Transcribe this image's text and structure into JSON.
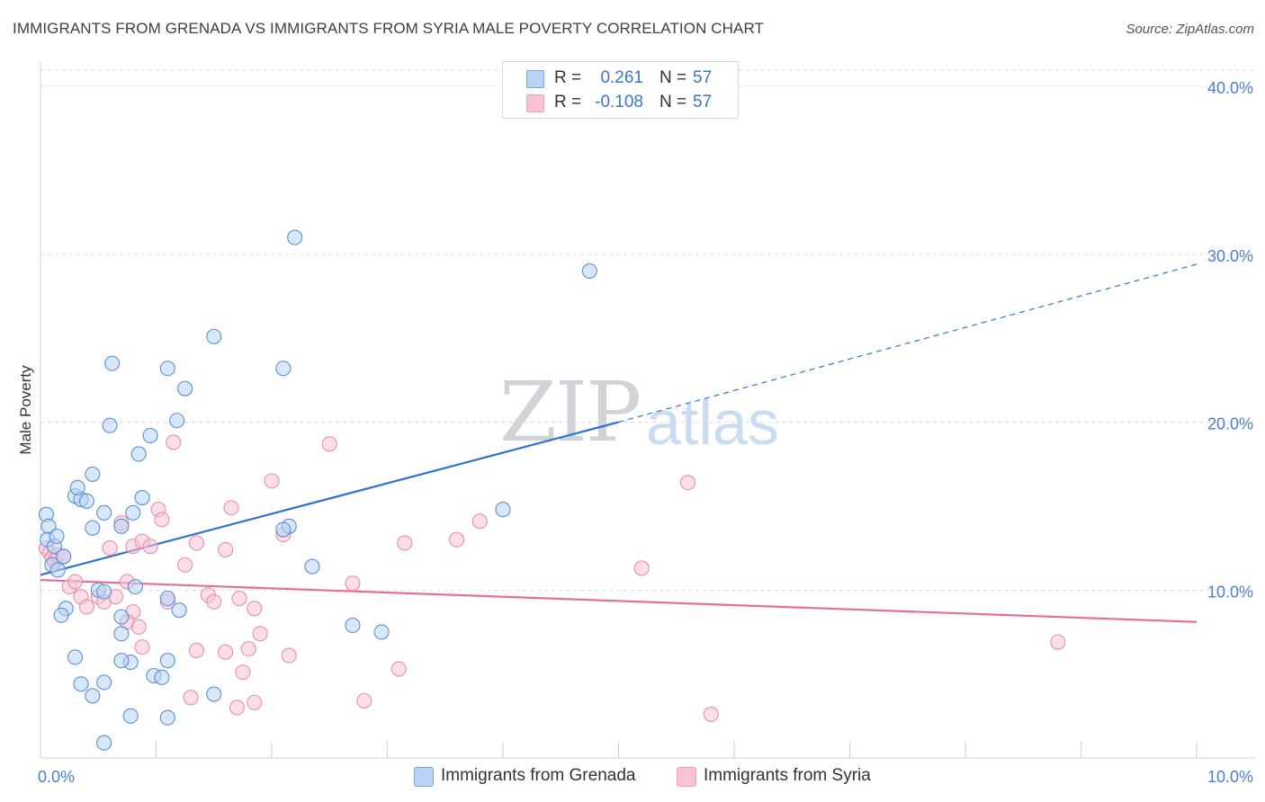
{
  "title": "IMMIGRANTS FROM GRENADA VS IMMIGRANTS FROM SYRIA MALE POVERTY CORRELATION CHART",
  "source": "Source: ZipAtlas.com",
  "watermark": {
    "zip": "ZIP",
    "atlas": "atlas"
  },
  "colors": {
    "grenada_fill": "#b9d3f5",
    "grenada_stroke": "#5b8fd6",
    "grenada_line": "#2f73d0",
    "syria_fill": "#f8c3d4",
    "syria_stroke": "#e58fae",
    "syria_line": "#e86d9a",
    "axis_text": "#4a7fd4"
  },
  "legend": {
    "rows": [
      {
        "r_label": "R =",
        "r_value": "0.261",
        "n_label": "N =",
        "n_value": "57"
      },
      {
        "r_label": "R =",
        "r_value": "-0.108",
        "n_label": "N =",
        "n_value": "57"
      }
    ]
  },
  "bottom_legend": [
    {
      "label": "Immigrants from Grenada"
    },
    {
      "label": "Immigrants from Syria"
    }
  ],
  "chart_data": {
    "type": "scatter",
    "title": "IMMIGRANTS FROM GRENADA VS IMMIGRANTS FROM SYRIA MALE POVERTY CORRELATION CHART",
    "xlabel": "",
    "ylabel": "Male Poverty",
    "xlim": [
      0,
      10
    ],
    "ylim": [
      0,
      40
    ],
    "x_tick_labels": [
      "0.0%",
      "10.0%"
    ],
    "y_ticks": [
      10,
      20,
      30,
      40
    ],
    "y_tick_labels": [
      "10.0%",
      "20.0%",
      "30.0%",
      "40.0%"
    ],
    "grid": true,
    "series": [
      {
        "name": "Immigrants from Grenada",
        "points": [
          [
            0.05,
            14.5
          ],
          [
            0.07,
            13.8
          ],
          [
            0.06,
            13.0
          ],
          [
            0.12,
            12.6
          ],
          [
            0.14,
            13.2
          ],
          [
            0.1,
            11.5
          ],
          [
            0.15,
            11.2
          ],
          [
            0.3,
            15.6
          ],
          [
            0.35,
            15.4
          ],
          [
            0.45,
            16.9
          ],
          [
            0.32,
            16.1
          ],
          [
            0.4,
            15.3
          ],
          [
            0.55,
            14.6
          ],
          [
            0.45,
            13.7
          ],
          [
            0.22,
            8.9
          ],
          [
            0.18,
            8.5
          ],
          [
            0.5,
            10.0
          ],
          [
            0.55,
            9.9
          ],
          [
            0.7,
            13.8
          ],
          [
            0.8,
            14.6
          ],
          [
            0.6,
            19.8
          ],
          [
            0.62,
            23.5
          ],
          [
            0.85,
            18.1
          ],
          [
            0.95,
            19.2
          ],
          [
            0.88,
            15.5
          ],
          [
            1.1,
            9.5
          ],
          [
            1.2,
            8.8
          ],
          [
            1.25,
            22.0
          ],
          [
            1.1,
            23.2
          ],
          [
            1.5,
            25.1
          ],
          [
            0.82,
            10.2
          ],
          [
            0.7,
            7.4
          ],
          [
            0.7,
            8.4
          ],
          [
            0.78,
            5.7
          ],
          [
            0.7,
            5.8
          ],
          [
            0.98,
            4.9
          ],
          [
            1.05,
            4.8
          ],
          [
            1.1,
            5.8
          ],
          [
            0.3,
            6.0
          ],
          [
            0.35,
            4.4
          ],
          [
            0.45,
            3.7
          ],
          [
            0.55,
            4.5
          ],
          [
            0.78,
            2.5
          ],
          [
            1.1,
            2.4
          ],
          [
            0.55,
            0.9
          ],
          [
            1.5,
            3.8
          ],
          [
            2.1,
            23.2
          ],
          [
            2.2,
            31.0
          ],
          [
            2.15,
            13.8
          ],
          [
            2.35,
            11.4
          ],
          [
            2.7,
            7.9
          ],
          [
            2.95,
            7.5
          ],
          [
            4.0,
            14.8
          ],
          [
            4.75,
            29.0
          ],
          [
            2.1,
            13.6
          ],
          [
            1.18,
            20.1
          ],
          [
            0.2,
            12.0
          ]
        ]
      },
      {
        "name": "Immigrants from Syria",
        "points": [
          [
            0.05,
            12.5
          ],
          [
            0.08,
            12.2
          ],
          [
            0.1,
            11.9
          ],
          [
            0.12,
            11.7
          ],
          [
            0.15,
            12.1
          ],
          [
            0.2,
            12.0
          ],
          [
            0.25,
            10.2
          ],
          [
            0.3,
            10.5
          ],
          [
            0.35,
            9.6
          ],
          [
            0.4,
            9.0
          ],
          [
            0.5,
            9.6
          ],
          [
            0.55,
            9.3
          ],
          [
            0.6,
            12.5
          ],
          [
            0.65,
            9.6
          ],
          [
            0.75,
            10.5
          ],
          [
            0.8,
            8.7
          ],
          [
            0.75,
            8.1
          ],
          [
            0.7,
            14.0
          ],
          [
            0.8,
            12.6
          ],
          [
            0.88,
            12.9
          ],
          [
            0.95,
            12.6
          ],
          [
            1.02,
            14.8
          ],
          [
            1.05,
            14.2
          ],
          [
            1.1,
            9.3
          ],
          [
            1.25,
            11.5
          ],
          [
            1.35,
            12.8
          ],
          [
            1.45,
            9.7
          ],
          [
            1.5,
            9.3
          ],
          [
            1.6,
            12.4
          ],
          [
            1.65,
            14.9
          ],
          [
            1.6,
            6.3
          ],
          [
            1.35,
            6.4
          ],
          [
            1.72,
            9.5
          ],
          [
            1.8,
            6.5
          ],
          [
            1.9,
            7.4
          ],
          [
            1.85,
            8.9
          ],
          [
            1.75,
            5.1
          ],
          [
            2.0,
            16.5
          ],
          [
            2.1,
            13.3
          ],
          [
            2.15,
            6.1
          ],
          [
            2.5,
            18.7
          ],
          [
            2.7,
            10.4
          ],
          [
            2.8,
            3.4
          ],
          [
            3.1,
            5.3
          ],
          [
            3.15,
            12.8
          ],
          [
            3.6,
            13.0
          ],
          [
            3.8,
            14.1
          ],
          [
            5.2,
            11.3
          ],
          [
            5.6,
            16.4
          ],
          [
            5.8,
            2.6
          ],
          [
            8.8,
            6.9
          ],
          [
            1.15,
            18.8
          ],
          [
            0.88,
            6.6
          ],
          [
            1.3,
            3.6
          ],
          [
            1.7,
            3.0
          ],
          [
            1.85,
            3.3
          ],
          [
            0.85,
            7.8
          ]
        ]
      }
    ],
    "trendlines": [
      {
        "series": "Immigrants from Grenada",
        "start": [
          0,
          10.9
        ],
        "solid_end": [
          5.0,
          20.0
        ],
        "dashed_end": [
          10,
          29.4
        ]
      },
      {
        "series": "Immigrants from Syria",
        "start": [
          0,
          10.6
        ],
        "end": [
          10,
          8.1
        ]
      }
    ]
  }
}
